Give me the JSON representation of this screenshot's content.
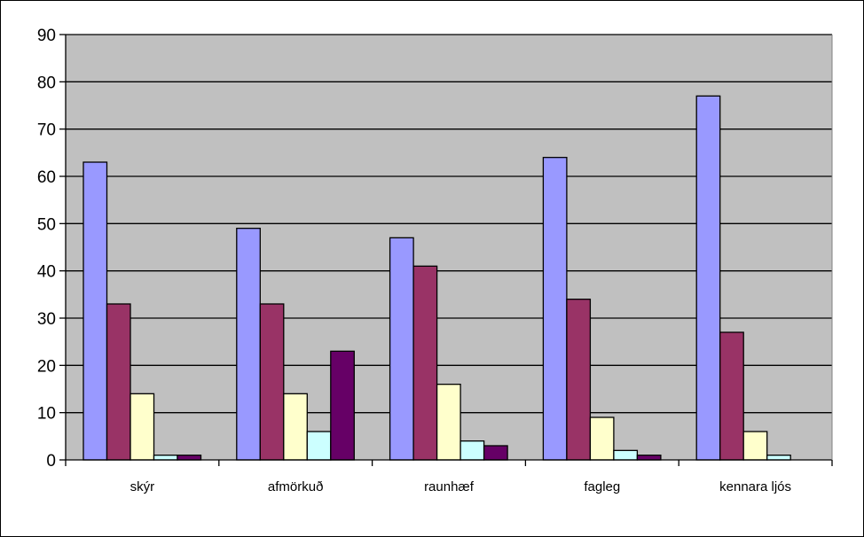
{
  "chart_data": {
    "type": "bar",
    "title": "",
    "xlabel": "",
    "ylabel": "",
    "categories": [
      "skýr",
      "afmörkuð",
      "raunhæf",
      "fagleg",
      "kennara ljós"
    ],
    "series": [
      {
        "values": [
          63,
          49,
          47,
          64,
          77
        ],
        "color": "#9999FF"
      },
      {
        "values": [
          33,
          33,
          41,
          34,
          27
        ],
        "color": "#993366"
      },
      {
        "values": [
          14,
          14,
          16,
          9,
          6
        ],
        "color": "#FFFFCC"
      },
      {
        "values": [
          1,
          6,
          4,
          2,
          1
        ],
        "color": "#CCFFFF"
      },
      {
        "values": [
          1,
          23,
          3,
          1,
          0
        ],
        "color": "#660066"
      }
    ],
    "ylim": [
      0,
      90
    ],
    "yticks": [
      0,
      10,
      20,
      30,
      40,
      50,
      60,
      70,
      80,
      90
    ],
    "grid": true,
    "plot_background": "#C0C0C0",
    "legend": "none"
  }
}
